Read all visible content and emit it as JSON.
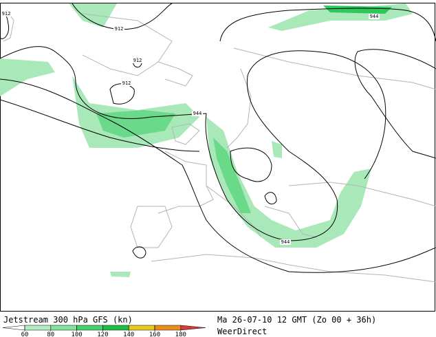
{
  "map": {
    "contour_labels": [
      "912",
      "912",
      "912",
      "912",
      "944",
      "944",
      "944"
    ]
  },
  "legend": {
    "title": "Jetstream 300 hPa GFS (kn)",
    "ticks": [
      60,
      80,
      100,
      120,
      140,
      160,
      180
    ],
    "colors": [
      "#b4ecc4",
      "#82e29e",
      "#46d26e",
      "#1ebe46",
      "#e6c81e",
      "#eb8c1e"
    ],
    "below_color": "#ffffff",
    "above_color": "#d23c3c"
  },
  "info": {
    "valid_time": "Ma 26-07-10 12 GMT (Zo 00 + 36h)",
    "source": "WeerDirect"
  }
}
